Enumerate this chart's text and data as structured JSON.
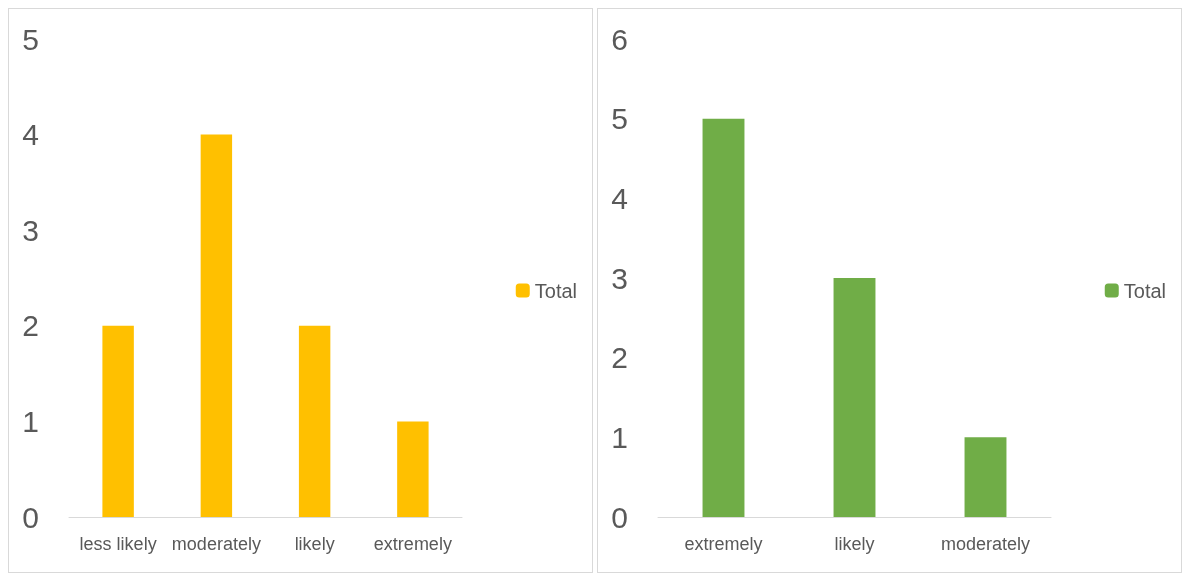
{
  "chart_data": [
    {
      "type": "bar",
      "categories": [
        "less likely",
        "moderately",
        "likely",
        "extremely"
      ],
      "series": [
        {
          "name": "Total",
          "color": "#ffc000",
          "values": [
            2,
            4,
            2,
            1
          ]
        }
      ],
      "ylim": [
        0,
        5
      ],
      "yticks": [
        0,
        1,
        2,
        3,
        4,
        5
      ],
      "grid": false,
      "legend": "right"
    },
    {
      "type": "bar",
      "categories": [
        "extremely",
        "likely",
        "moderately"
      ],
      "series": [
        {
          "name": "Total",
          "color": "#70ad47",
          "values": [
            5,
            3,
            1
          ]
        }
      ],
      "ylim": [
        0,
        6
      ],
      "yticks": [
        0,
        1,
        2,
        3,
        4,
        5,
        6
      ],
      "grid": false,
      "legend": "right"
    }
  ]
}
